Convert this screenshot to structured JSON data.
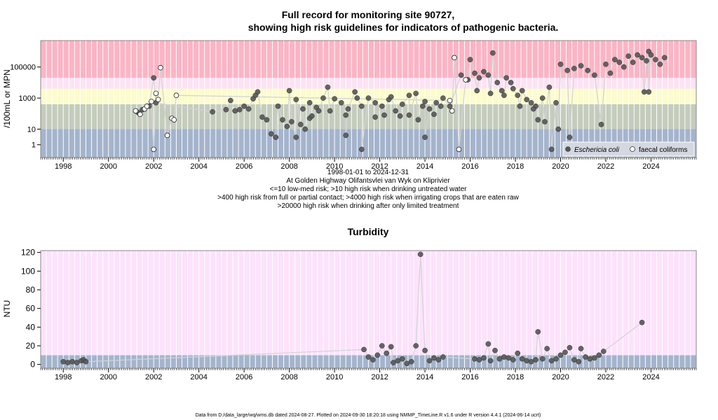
{
  "colors": {
    "band_low": "#a4b4cc",
    "band_med": "#c4ccbc",
    "band_yellow": "#fcfccc",
    "band_pink_light": "#fde2f4",
    "band_red": "#fcb4c4",
    "turbidity_bg": "#fde2fc",
    "ecoli_point": "#555555",
    "line": "#d4d4d4",
    "grid": "#ffffff"
  },
  "footer": "Data from D:/data_large/wq/wms.db dated 2024-08-27. Plotted on 2024-09-30 18:20:18 using NMMP_TimeLine.R v1.6 under R version 4.4.1 (2024-06-14 ucrt)",
  "chart_data": [
    {
      "type": "scatter",
      "title_line1": "Full record for monitoring site 90727,",
      "title_line2": "showing high risk guidelines for indicators of pathogenic bacteria.",
      "ylabel": "/100mL or MPN",
      "y_scale": "log10",
      "ylim": [
        0.15,
        5000000
      ],
      "xlim": [
        "1997-01-01",
        "2025-12-31"
      ],
      "y_ticks": [
        {
          "value": 1,
          "label": "1"
        },
        {
          "value": 10,
          "label": "10"
        },
        {
          "value": 1000,
          "label": "1000"
        },
        {
          "value": 100000,
          "label": "100000"
        }
      ],
      "x_ticks": [
        "1998",
        "2000",
        "2002",
        "2004",
        "2006",
        "2008",
        "2010",
        "2012",
        "2014",
        "2016",
        "2018",
        "2020",
        "2022",
        "2024"
      ],
      "guideline_bands": [
        {
          "from": 0.15,
          "to": 10,
          "color_key": "band_low"
        },
        {
          "from": 10,
          "to": 400,
          "color_key": "band_med"
        },
        {
          "from": 400,
          "to": 4000,
          "color_key": "band_yellow"
        },
        {
          "from": 4000,
          "to": 20000,
          "color_key": "band_pink_light"
        },
        {
          "from": 20000,
          "to": 5000000,
          "color_key": "band_red"
        }
      ],
      "grid": true,
      "legend_position": "bottom-right",
      "legend": [
        {
          "label": "Eschericia coli",
          "marker": "filled-circle"
        },
        {
          "label": "faecal coliforms",
          "marker": "open-circle"
        }
      ],
      "subtitle_lines": [
        "1998-01-01 to 2024-12-31",
        "At Golden Highway Olifantsvlei van Wyk on Kliprivier",
        "<=10 low-med risk; >10 high risk when drinking untreated water",
        ">400 high risk from full or partial contact; >4000 high risk when irrigating crops that are eaten raw",
        ">20000 high risk when drinking after only limited treatment"
      ],
      "series": [
        {
          "name": "Eschericia coli",
          "points": [
            [
              2001.3,
              120
            ],
            [
              2001.5,
              180
            ],
            [
              2001.8,
              300
            ],
            [
              2002.0,
              20000
            ],
            [
              2002.1,
              500
            ],
            [
              2004.6,
              130
            ],
            [
              2005.2,
              180
            ],
            [
              2005.4,
              700
            ],
            [
              2005.6,
              150
            ],
            [
              2005.8,
              180
            ],
            [
              2006.0,
              300
            ],
            [
              2006.2,
              200
            ],
            [
              2006.4,
              900
            ],
            [
              2006.5,
              1500
            ],
            [
              2006.6,
              2500
            ],
            [
              2006.8,
              60
            ],
            [
              2007.0,
              40
            ],
            [
              2007.2,
              5
            ],
            [
              2007.4,
              3
            ],
            [
              2007.5,
              300
            ],
            [
              2007.7,
              40
            ],
            [
              2007.9,
              15
            ],
            [
              2008.1,
              30
            ],
            [
              2008.3,
              3
            ],
            [
              2008.5,
              20
            ],
            [
              2008.7,
              10
            ],
            [
              2008.9,
              50
            ],
            [
              2009.0,
              70
            ],
            [
              2008.0,
              3000
            ],
            [
              2008.3,
              800
            ],
            [
              2008.6,
              200
            ],
            [
              2008.9,
              500
            ],
            [
              2009.2,
              250
            ],
            [
              2009.5,
              1000
            ],
            [
              2009.8,
              150
            ],
            [
              2010.0,
              900
            ],
            [
              2010.3,
              500
            ],
            [
              2010.6,
              200
            ],
            [
              2010.9,
              2500
            ],
            [
              2011.2,
              300
            ],
            [
              2011.5,
              1000
            ],
            [
              2011.8,
              500
            ],
            [
              2012.1,
              300
            ],
            [
              2012.4,
              800
            ],
            [
              2012.7,
              150
            ],
            [
              2013.0,
              400
            ],
            [
              2013.3,
              1500
            ],
            [
              2013.6,
              2000
            ],
            [
              2013.9,
              300
            ],
            [
              2014.2,
              200
            ],
            [
              2014.5,
              500
            ],
            [
              2014.8,
              1000
            ],
            [
              2015.1,
              300
            ],
            [
              2009.7,
              5000
            ],
            [
              2009.3,
              150
            ],
            [
              2010.5,
              80
            ],
            [
              2011.0,
              1000
            ],
            [
              2011.8,
              60
            ],
            [
              2012.2,
              80
            ],
            [
              2012.5,
              1200
            ],
            [
              2012.9,
              70
            ],
            [
              2013.3,
              80
            ],
            [
              2013.7,
              40
            ],
            [
              2014.0,
              600
            ],
            [
              2014.4,
              90
            ],
            [
              2014.7,
              300
            ],
            [
              2010.5,
              4
            ],
            [
              2011.2,
              0.5
            ],
            [
              2014.0,
              3
            ],
            [
              2016.0,
              300000
            ],
            [
              2016.2,
              40000
            ],
            [
              2016.4,
              20000
            ],
            [
              2016.6,
              50000
            ],
            [
              2016.8,
              30000
            ],
            [
              2017.0,
              800000
            ],
            [
              2017.2,
              10000
            ],
            [
              2017.4,
              3000
            ],
            [
              2017.6,
              20000
            ],
            [
              2017.8,
              10000
            ],
            [
              2017.9,
              4000
            ],
            [
              2018.1,
              1500
            ],
            [
              2018.3,
              3000
            ],
            [
              2018.5,
              800
            ],
            [
              2018.7,
              500
            ],
            [
              2018.9,
              300
            ],
            [
              2019.0,
              40
            ],
            [
              2019.2,
              1000
            ],
            [
              2019.5,
              5000
            ],
            [
              2019.8,
              500
            ],
            [
              2020.0,
              150000
            ],
            [
              2020.3,
              60000
            ],
            [
              2020.6,
              80000
            ],
            [
              2015.6,
              30000
            ],
            [
              2015.9,
              15000
            ],
            [
              2016.3,
              3000
            ],
            [
              2016.9,
              2000
            ],
            [
              2017.5,
              1500
            ],
            [
              2018.2,
              300
            ],
            [
              2018.8,
              200
            ],
            [
              2019.3,
              30
            ],
            [
              2019.6,
              0.5
            ],
            [
              2019.9,
              10
            ],
            [
              2020.4,
              3
            ],
            [
              2020.9,
              120000
            ],
            [
              2021.2,
              60000
            ],
            [
              2021.5,
              30000
            ],
            [
              2021.8,
              20
            ],
            [
              2022.0,
              150000
            ],
            [
              2022.2,
              40000
            ],
            [
              2022.4,
              300000
            ],
            [
              2022.6,
              200000
            ],
            [
              2022.8,
              100000
            ],
            [
              2023.0,
              500000
            ],
            [
              2023.2,
              200000
            ],
            [
              2023.4,
              600000
            ],
            [
              2023.6,
              400000
            ],
            [
              2023.8,
              250000
            ],
            [
              2023.9,
              1000000
            ],
            [
              2024.0,
              600000
            ],
            [
              2024.2,
              300000
            ],
            [
              2024.4,
              150000
            ],
            [
              2024.6,
              400000
            ],
            [
              2023.7,
              2500
            ],
            [
              2023.9,
              2500
            ]
          ]
        },
        {
          "name": "faecal coliforms",
          "points": [
            [
              2001.2,
              150
            ],
            [
              2001.4,
              90
            ],
            [
              2001.6,
              200
            ],
            [
              2001.7,
              300
            ],
            [
              2001.9,
              600
            ],
            [
              2002.0,
              0.5
            ],
            [
              2002.1,
              2000
            ],
            [
              2002.2,
              800
            ],
            [
              2002.3,
              90000
            ],
            [
              2002.6,
              4
            ],
            [
              2002.8,
              50
            ],
            [
              2002.9,
              40
            ],
            [
              2003.0,
              1500
            ],
            [
              2015.1,
              700
            ],
            [
              2015.2,
              150
            ],
            [
              2015.3,
              400000
            ],
            [
              2015.5,
              0.5
            ],
            [
              2015.8,
              15000
            ]
          ]
        }
      ]
    },
    {
      "type": "scatter",
      "title": "Turbidity",
      "ylabel": "NTU",
      "xlim": [
        "1997-01-01",
        "2025-12-31"
      ],
      "ylim": [
        -4,
        122
      ],
      "y_ticks": [
        0,
        20,
        40,
        60,
        80,
        100,
        120
      ],
      "x_ticks": [
        "1998",
        "2000",
        "2002",
        "2004",
        "2006",
        "2008",
        "2010",
        "2012",
        "2014",
        "2016",
        "2018",
        "2020",
        "2022",
        "2024"
      ],
      "guideline_bands": [
        {
          "from": -4,
          "to": 10,
          "color_key": "band_low"
        },
        {
          "from": 10,
          "to": 122,
          "color_key": "turbidity_bg"
        }
      ],
      "grid": true,
      "series": [
        {
          "name": "",
          "points": [
            [
              1998.0,
              3
            ],
            [
              1998.2,
              2
            ],
            [
              1998.4,
              3
            ],
            [
              1998.6,
              2
            ],
            [
              1998.8,
              4
            ],
            [
              1998.9,
              5
            ],
            [
              1999.0,
              3
            ],
            [
              2011.3,
              16
            ],
            [
              2011.5,
              8
            ],
            [
              2011.7,
              5
            ],
            [
              2011.9,
              10
            ],
            [
              2012.1,
              20
            ],
            [
              2012.3,
              12
            ],
            [
              2012.5,
              19
            ],
            [
              2012.6,
              2
            ],
            [
              2012.8,
              4
            ],
            [
              2013.0,
              6
            ],
            [
              2013.2,
              1
            ],
            [
              2013.4,
              3
            ],
            [
              2013.6,
              20
            ],
            [
              2013.8,
              118
            ],
            [
              2014.0,
              15
            ],
            [
              2014.2,
              4
            ],
            [
              2014.4,
              7
            ],
            [
              2014.6,
              5
            ],
            [
              2014.8,
              8
            ],
            [
              2016.2,
              6
            ],
            [
              2016.4,
              5
            ],
            [
              2016.6,
              7
            ],
            [
              2016.8,
              22
            ],
            [
              2016.9,
              4
            ],
            [
              2017.1,
              15
            ],
            [
              2017.3,
              6
            ],
            [
              2017.5,
              8
            ],
            [
              2017.7,
              7
            ],
            [
              2017.9,
              5
            ],
            [
              2018.1,
              12
            ],
            [
              2018.3,
              6
            ],
            [
              2018.5,
              4
            ],
            [
              2018.7,
              3
            ],
            [
              2018.9,
              5
            ],
            [
              2019.0,
              35
            ],
            [
              2019.2,
              6
            ],
            [
              2019.4,
              17
            ],
            [
              2019.6,
              4
            ],
            [
              2019.8,
              6
            ],
            [
              2020.0,
              10
            ],
            [
              2020.2,
              13
            ],
            [
              2020.4,
              18
            ],
            [
              2020.6,
              5
            ],
            [
              2020.8,
              3
            ],
            [
              2020.9,
              17
            ],
            [
              2021.1,
              8
            ],
            [
              2021.3,
              6
            ],
            [
              2021.5,
              7
            ],
            [
              2021.7,
              10
            ],
            [
              2021.9,
              14
            ],
            [
              2023.6,
              45
            ]
          ]
        }
      ]
    }
  ]
}
